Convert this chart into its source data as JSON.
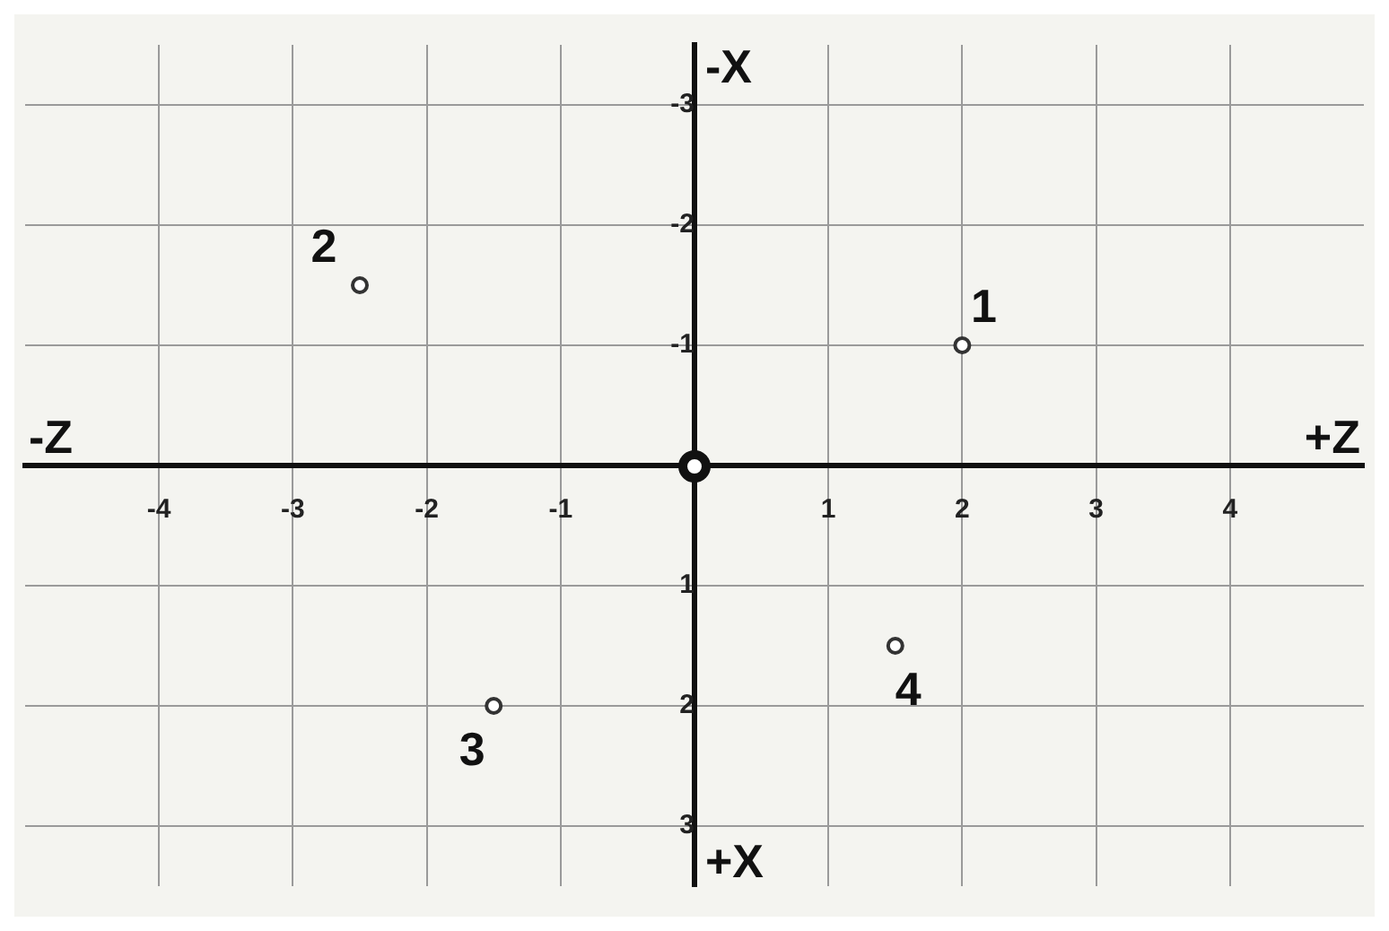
{
  "chart_data": {
    "type": "scatter",
    "x": [
      2,
      -2.5,
      -1.5,
      1.5
    ],
    "series": [
      {
        "color": "#333333",
        "values": [
          -1,
          -1.5,
          2,
          1.5
        ]
      }
    ],
    "xlim": [
      -5,
      5
    ],
    "ylim": [
      3.5,
      -3.5
    ],
    "xticks": [
      -4,
      -3,
      -2,
      -1,
      {
        "value": 0,
        "label": null
      },
      1,
      2,
      3,
      4
    ],
    "yticks": [
      -3,
      -2,
      -1,
      {
        "value": 0,
        "label": null
      },
      1,
      2,
      3
    ],
    "grid": true,
    "legend": false,
    "marker": "circle",
    "annotations": [
      "-Z",
      "+Z",
      "-X",
      "+X",
      {
        "text": "1",
        "x": 2,
        "y": -1
      },
      {
        "text": "2",
        "x": -2.5,
        "y": -1.5
      },
      {
        "text": "3",
        "x": -1.5,
        "y": 2
      },
      {
        "text": "4",
        "x": 1.5,
        "y": 1.5
      }
    ]
  }
}
